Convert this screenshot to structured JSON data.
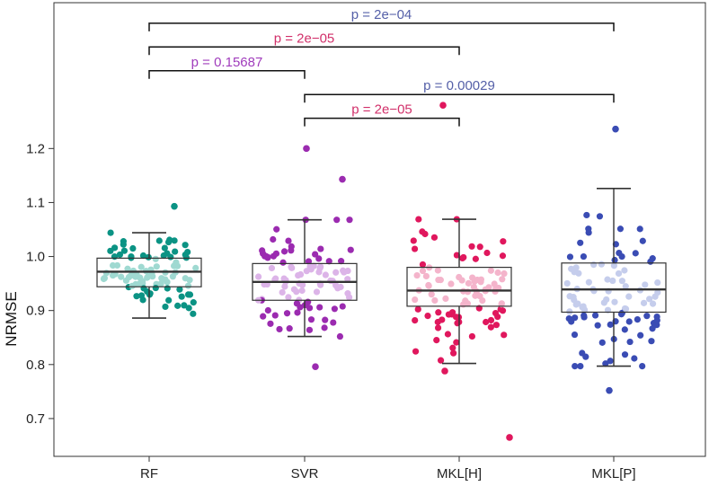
{
  "chart_data": {
    "type": "box",
    "xlabel": "",
    "ylabel": "NRMSE",
    "categories": [
      "RF",
      "SVR",
      "MKL[H]",
      "MKL[P]"
    ],
    "y_ticks": [
      0.7,
      0.8,
      0.9,
      1.0,
      1.1,
      1.2
    ],
    "y_tick_labels": [
      "0.7",
      "0.8",
      "0.9",
      "1.0",
      "1.1",
      "1.2"
    ],
    "ylim": [
      0.63,
      1.47
    ],
    "grid": false,
    "boxes": [
      {
        "name": "RF",
        "whisker_low": 0.886,
        "q1": 0.944,
        "median": 0.972,
        "q3": 0.997,
        "whisker_high": 1.044,
        "color_dark": "#0b9384",
        "color_light": "#9fd9d1"
      },
      {
        "name": "SVR",
        "whisker_low": 0.852,
        "q1": 0.919,
        "median": 0.953,
        "q3": 0.987,
        "whisker_high": 1.068,
        "color_dark": "#9b2bb0",
        "color_light": "#dcb4e8"
      },
      {
        "name": "MKL[H]",
        "whisker_low": 0.802,
        "q1": 0.908,
        "median": 0.937,
        "q3": 0.98,
        "whisker_high": 1.069,
        "color_dark": "#e0175d",
        "color_light": "#f4b4cb"
      },
      {
        "name": "MKL[P]",
        "whisker_low": 0.797,
        "q1": 0.897,
        "median": 0.939,
        "q3": 0.988,
        "whisker_high": 1.126,
        "color_dark": "#3a4cb4",
        "color_light": "#c5cdec"
      }
    ],
    "outliers": [
      {
        "box": 0,
        "values": [
          1.093
        ]
      },
      {
        "box": 1,
        "values": [
          1.2,
          1.143,
          0.796
        ]
      },
      {
        "box": 2,
        "values": [
          1.28,
          0.665,
          0.788
        ]
      },
      {
        "box": 3,
        "values": [
          1.236,
          0.752
        ]
      }
    ],
    "comparisons": [
      {
        "from": 0,
        "to": 3,
        "label": "p = 2e−04",
        "y": 1.432,
        "color": "#5560a8"
      },
      {
        "from": 0,
        "to": 2,
        "label": "p = 2e−05",
        "y": 1.388,
        "color": "#d1306a"
      },
      {
        "from": 0,
        "to": 1,
        "label": "p = 0.15687",
        "y": 1.344,
        "color": "#a03cbc"
      },
      {
        "from": 1,
        "to": 3,
        "label": "p = 0.00029",
        "y": 1.3,
        "color": "#5560a8"
      },
      {
        "from": 1,
        "to": 2,
        "label": "p = 2e−05",
        "y": 1.256,
        "color": "#d1306a"
      }
    ]
  }
}
